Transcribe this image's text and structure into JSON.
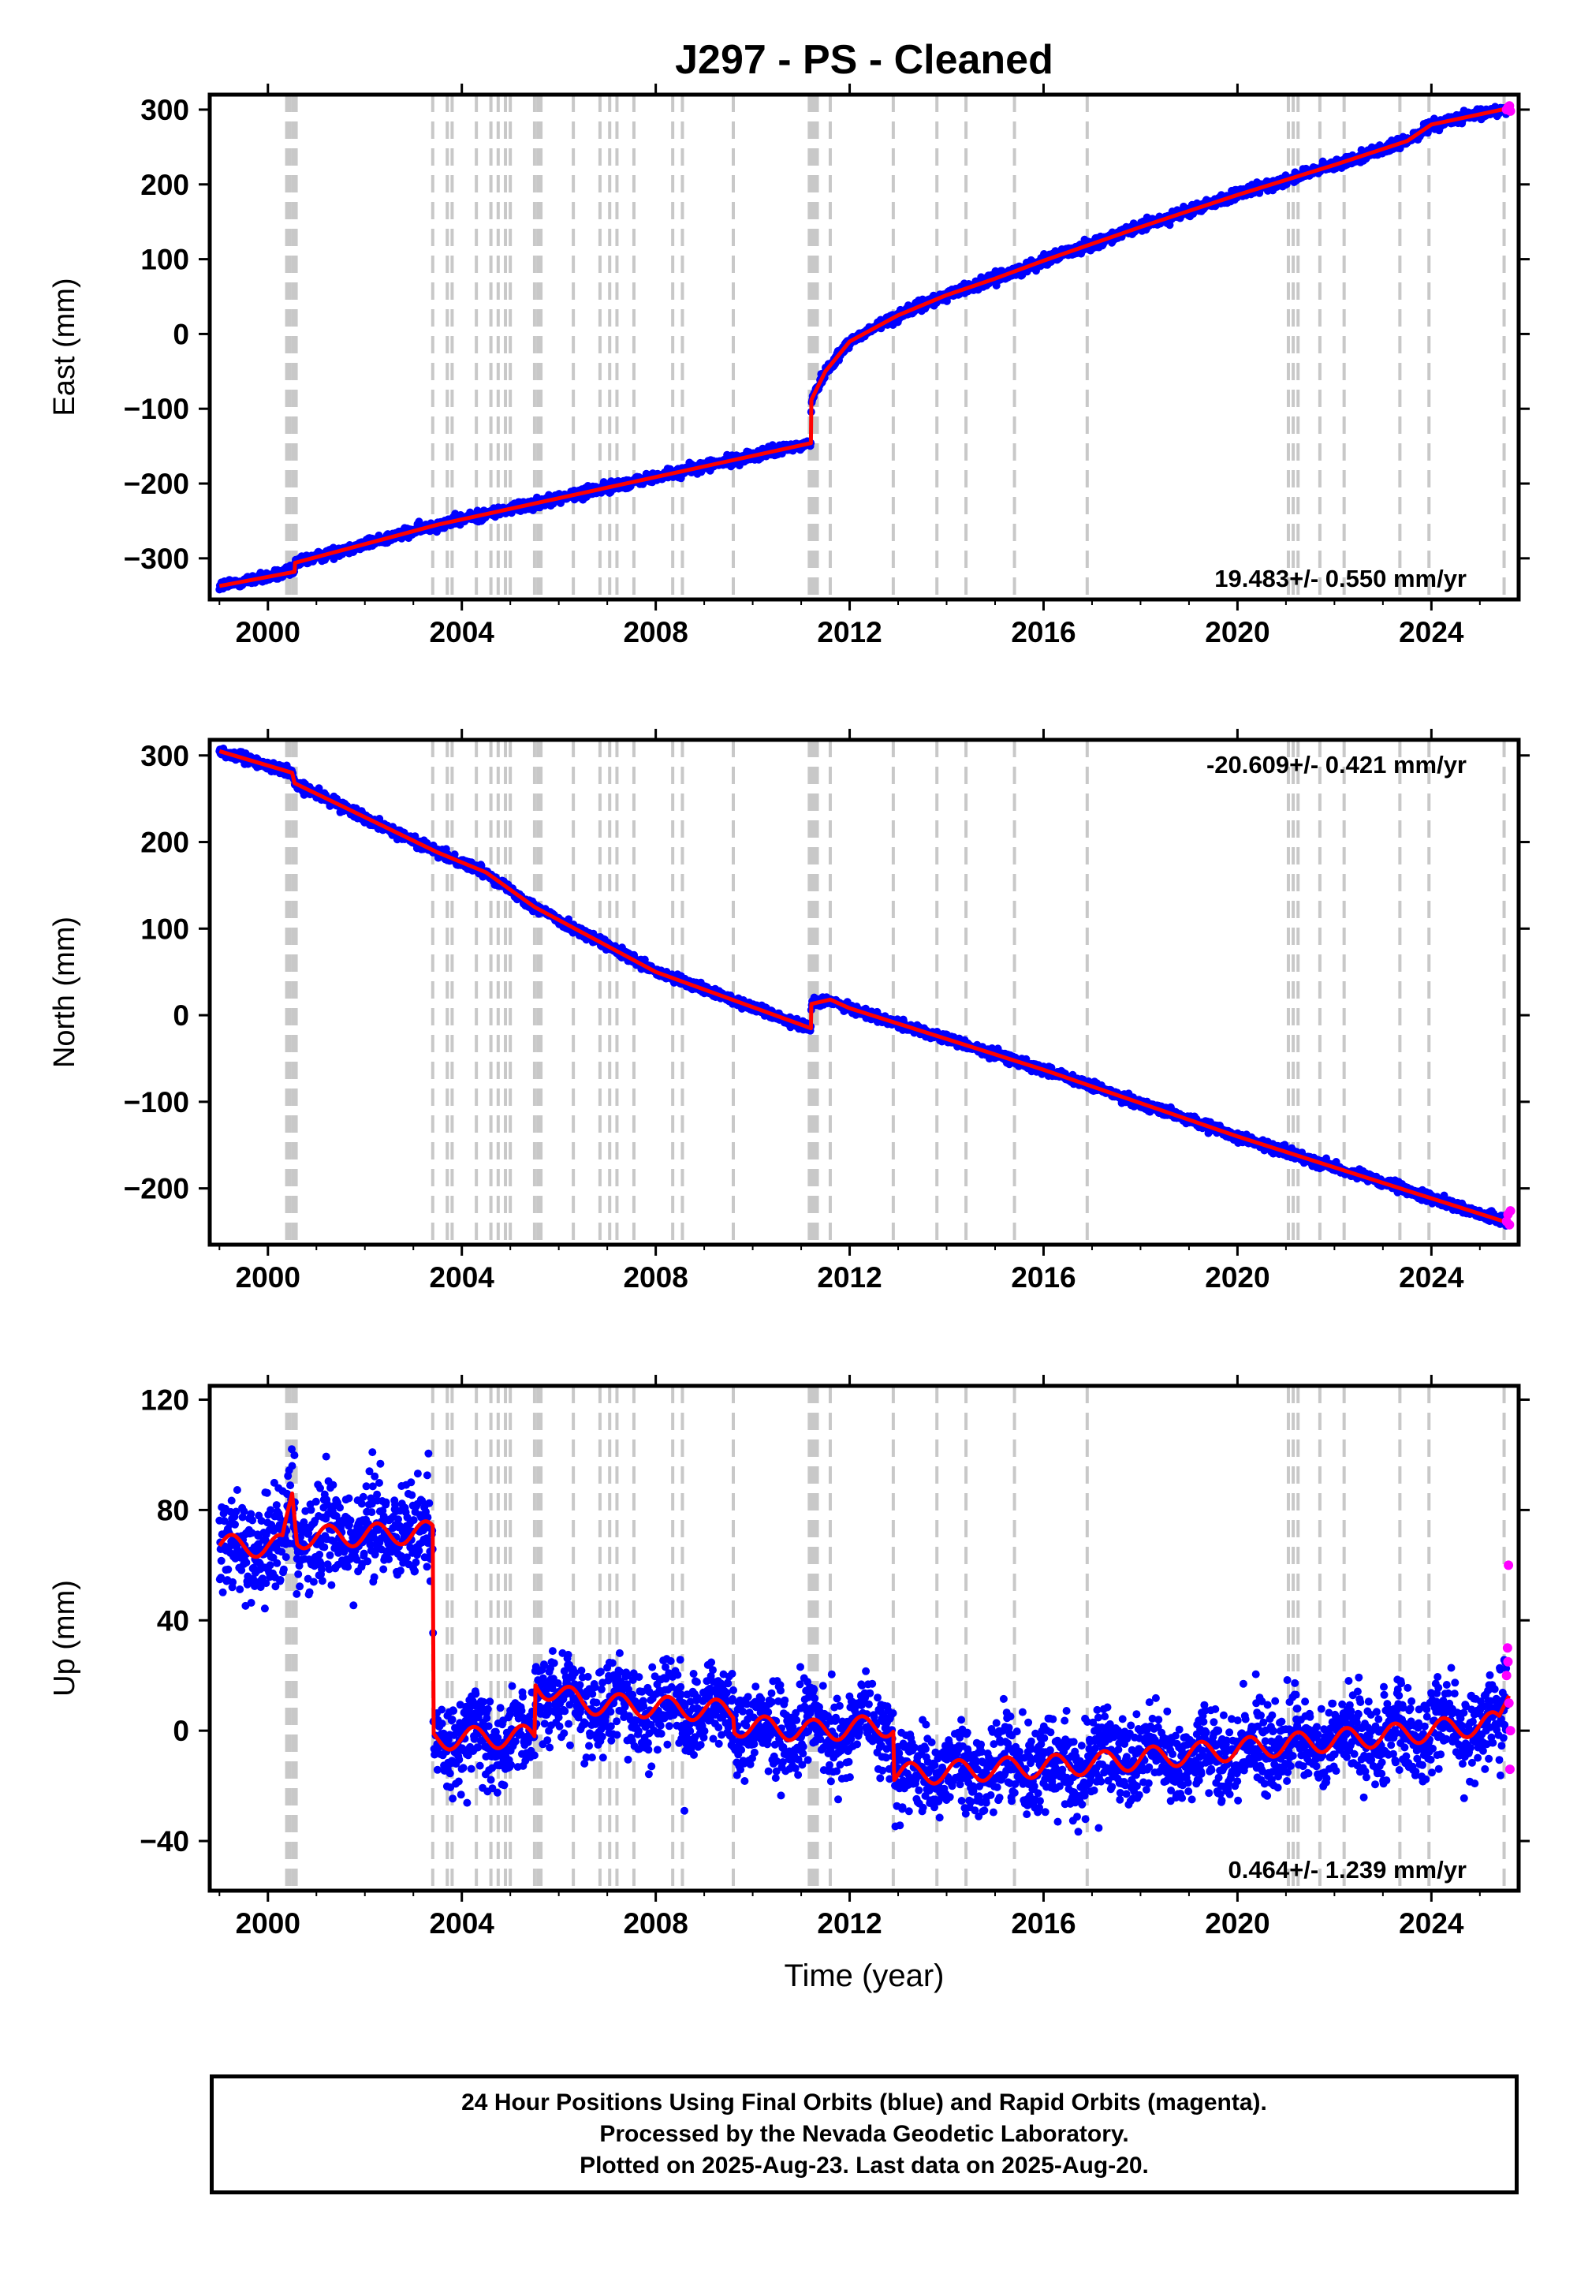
{
  "title": "J297  - PS - Cleaned",
  "xlabel": "Time (year)",
  "colors": {
    "final": "#0000ff",
    "rapid": "#ff00ff",
    "model": "#ff0000",
    "steps": "#c8c8c8"
  },
  "caption": [
    "24 Hour Positions Using Final Orbits (blue) and Rapid Orbits (magenta).",
    "Processed by the Nevada Geodetic Laboratory.",
    "Plotted on 2025-Aug-23. Last data on 2025-Aug-20."
  ],
  "chart_data": [
    {
      "type": "scatter",
      "component": "east",
      "ylabel": "East (mm)",
      "xlim": [
        1998.8,
        2025.8
      ],
      "ylim": [
        -355,
        320
      ],
      "xticks": [
        2000,
        2004,
        2008,
        2012,
        2016,
        2020,
        2024
      ],
      "yticks": [
        -300,
        -200,
        -100,
        0,
        100,
        200,
        300
      ],
      "rate_label": "19.483+/- 0.550 mm/yr",
      "rate_position": "bottom-right",
      "steps": [
        2000.42,
        2000.55,
        2003.4,
        2003.7,
        2003.8,
        2004.3,
        2004.6,
        2004.75,
        2004.9,
        2005.0,
        2005.5,
        2005.6,
        2006.3,
        2006.85,
        2007.05,
        2007.2,
        2007.55,
        2008.35,
        2008.55,
        2009.6,
        2011.2,
        2011.3,
        2011.6,
        2012.9,
        2013.8,
        2014.4,
        2015.4,
        2016.9,
        2021.05,
        2021.15,
        2021.25,
        2021.7,
        2022.2,
        2023.35,
        2023.95,
        2025.5
      ],
      "model": [
        [
          1999.0,
          -337
        ],
        [
          2000.55,
          -318
        ],
        [
          2000.56,
          -306
        ],
        [
          2003.5,
          -255
        ],
        [
          2011.2,
          -146
        ],
        [
          2011.21,
          -88
        ],
        [
          2011.5,
          -50
        ],
        [
          2012.0,
          -10
        ],
        [
          2013.0,
          25
        ],
        [
          2014.0,
          52
        ],
        [
          2015.0,
          74
        ],
        [
          2016.0,
          98
        ],
        [
          2018.0,
          143
        ],
        [
          2020.0,
          186
        ],
        [
          2022.0,
          226
        ],
        [
          2023.5,
          258
        ],
        [
          2024.0,
          280
        ],
        [
          2025.6,
          302
        ]
      ],
      "noise": 5,
      "rapid": [
        [
          2025.55,
          300
        ],
        [
          2025.58,
          303
        ],
        [
          2025.61,
          305
        ],
        [
          2025.63,
          298
        ]
      ]
    },
    {
      "type": "scatter",
      "component": "north",
      "ylabel": "North (mm)",
      "xlim": [
        1998.8,
        2025.8
      ],
      "ylim": [
        -265,
        318
      ],
      "xticks": [
        2000,
        2004,
        2008,
        2012,
        2016,
        2020,
        2024
      ],
      "yticks": [
        -200,
        -100,
        0,
        100,
        200,
        300
      ],
      "rate_label": "-20.609+/- 0.421 mm/yr",
      "rate_position": "top-right",
      "steps": [
        2000.42,
        2000.55,
        2003.4,
        2003.7,
        2003.8,
        2004.3,
        2004.6,
        2004.75,
        2004.9,
        2005.0,
        2005.5,
        2005.6,
        2006.3,
        2006.85,
        2007.05,
        2007.2,
        2007.55,
        2008.35,
        2008.55,
        2009.6,
        2011.2,
        2011.3,
        2011.6,
        2012.9,
        2013.8,
        2014.4,
        2015.4,
        2016.9,
        2021.05,
        2021.15,
        2021.25,
        2021.7,
        2022.2,
        2023.35,
        2023.95,
        2025.5
      ],
      "model": [
        [
          1999.0,
          305
        ],
        [
          2000.5,
          280
        ],
        [
          2000.55,
          268
        ],
        [
          2003.5,
          188
        ],
        [
          2004.5,
          165
        ],
        [
          2005.5,
          125
        ],
        [
          2008.0,
          50
        ],
        [
          2011.2,
          -15
        ],
        [
          2011.21,
          13
        ],
        [
          2011.6,
          18
        ],
        [
          2012.0,
          8
        ],
        [
          2016.0,
          -63
        ],
        [
          2020.0,
          -140
        ],
        [
          2025.6,
          -240
        ]
      ],
      "noise": 4,
      "rapid": [
        [
          2025.55,
          -238
        ],
        [
          2025.58,
          -230
        ],
        [
          2025.61,
          -242
        ],
        [
          2025.63,
          -226
        ]
      ]
    },
    {
      "type": "scatter",
      "component": "up",
      "ylabel": "Up (mm)",
      "xlim": [
        1998.8,
        2025.8
      ],
      "ylim": [
        -58,
        125
      ],
      "xticks": [
        2000,
        2004,
        2008,
        2012,
        2016,
        2020,
        2024
      ],
      "yticks": [
        -40,
        0,
        40,
        80,
        120
      ],
      "rate_label": "0.464+/- 1.239 mm/yr",
      "rate_position": "bottom-right",
      "steps": [
        2000.42,
        2000.55,
        2003.4,
        2003.7,
        2003.8,
        2004.3,
        2004.6,
        2004.75,
        2004.9,
        2005.0,
        2005.5,
        2005.6,
        2006.3,
        2006.85,
        2007.05,
        2007.2,
        2007.55,
        2008.35,
        2008.55,
        2009.6,
        2011.2,
        2011.3,
        2011.6,
        2012.9,
        2013.8,
        2014.4,
        2015.4,
        2016.9,
        2021.05,
        2021.15,
        2021.25,
        2021.7,
        2022.2,
        2023.35,
        2023.95,
        2025.5
      ],
      "model": [
        [
          1999.0,
          67
        ],
        [
          2000.3,
          67
        ],
        [
          2000.5,
          86
        ],
        [
          2000.6,
          70
        ],
        [
          2003.4,
          72
        ],
        [
          2003.41,
          -3
        ],
        [
          2005.5,
          -2
        ],
        [
          2005.51,
          17
        ],
        [
          2006.5,
          10
        ],
        [
          2009.6,
          7
        ],
        [
          2009.61,
          2
        ],
        [
          2011.2,
          0
        ],
        [
          2012.9,
          2
        ],
        [
          2012.91,
          -16
        ],
        [
          2016.9,
          -12
        ],
        [
          2021.0,
          -5
        ],
        [
          2023.5,
          -1
        ],
        [
          2025.4,
          3
        ],
        [
          2025.6,
          15
        ]
      ],
      "noise": 11,
      "seasonal": 4,
      "rapid": [
        [
          2025.55,
          20
        ],
        [
          2025.57,
          30
        ],
        [
          2025.59,
          60
        ],
        [
          2025.6,
          10
        ],
        [
          2025.62,
          -14
        ],
        [
          2025.63,
          0
        ],
        [
          2025.58,
          25
        ]
      ]
    }
  ]
}
